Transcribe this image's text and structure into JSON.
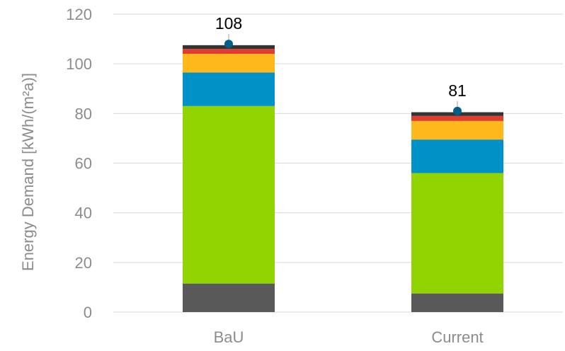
{
  "chart_data": {
    "type": "bar",
    "stacked": true,
    "title": "",
    "xlabel": "",
    "ylabel": "Energy Demand [kWh/(m²a)]",
    "ylim": [
      0,
      120
    ],
    "yticks": [
      0,
      20,
      40,
      60,
      80,
      100,
      120
    ],
    "ytick_labels": [
      "0",
      "20",
      "40",
      "60",
      "80",
      "100",
      "120"
    ],
    "grid": true,
    "legend": "none",
    "categories": [
      "BaU",
      "Current"
    ],
    "series": [
      {
        "color": "#595959",
        "values": [
          11.5,
          7.5
        ]
      },
      {
        "color": "#92d400",
        "values": [
          71.5,
          48.5
        ]
      },
      {
        "color": "#0091c7",
        "values": [
          13.5,
          13.5
        ]
      },
      {
        "color": "#ffb81c",
        "values": [
          7.5,
          7.5
        ]
      },
      {
        "color": "#e03c31",
        "values": [
          2.0,
          2.0
        ]
      },
      {
        "color": "#333333",
        "values": [
          1.5,
          1.5
        ]
      }
    ],
    "totals": [
      108,
      81
    ],
    "total_labels": [
      "108",
      "81"
    ],
    "marker_color": "#005f87"
  }
}
